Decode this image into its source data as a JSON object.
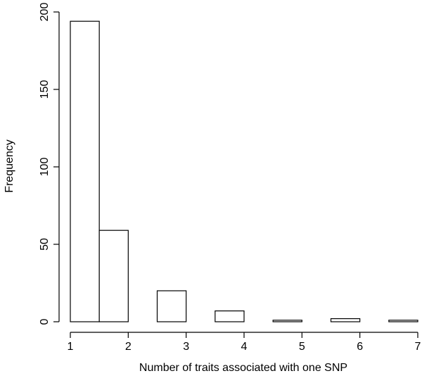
{
  "chart_data": {
    "type": "bar",
    "subtype": "histogram",
    "title": "",
    "xlabel": "Number of traits associated with one SNP",
    "ylabel": "Frequency",
    "bins": [
      {
        "from": 1.0,
        "to": 1.5,
        "value": 194
      },
      {
        "from": 1.5,
        "to": 2.0,
        "value": 59
      },
      {
        "from": 2.0,
        "to": 2.5,
        "value": 0
      },
      {
        "from": 2.5,
        "to": 3.0,
        "value": 20
      },
      {
        "from": 3.0,
        "to": 3.5,
        "value": 0
      },
      {
        "from": 3.5,
        "to": 4.0,
        "value": 7
      },
      {
        "from": 4.0,
        "to": 4.5,
        "value": 0
      },
      {
        "from": 4.5,
        "to": 5.0,
        "value": 1
      },
      {
        "from": 5.0,
        "to": 5.5,
        "value": 0
      },
      {
        "from": 5.5,
        "to": 6.0,
        "value": 2
      },
      {
        "from": 6.0,
        "to": 6.5,
        "value": 0
      },
      {
        "from": 6.5,
        "to": 7.0,
        "value": 1
      }
    ],
    "xlim": [
      1,
      7
    ],
    "ylim": [
      0,
      200
    ],
    "x_ticks": [
      "1",
      "2",
      "3",
      "4",
      "5",
      "6",
      "7"
    ],
    "y_ticks": [
      "0",
      "50",
      "100",
      "150",
      "200"
    ],
    "grid": false,
    "legend": "none",
    "bar_fill": "#ffffff",
    "bar_stroke": "#000000"
  }
}
